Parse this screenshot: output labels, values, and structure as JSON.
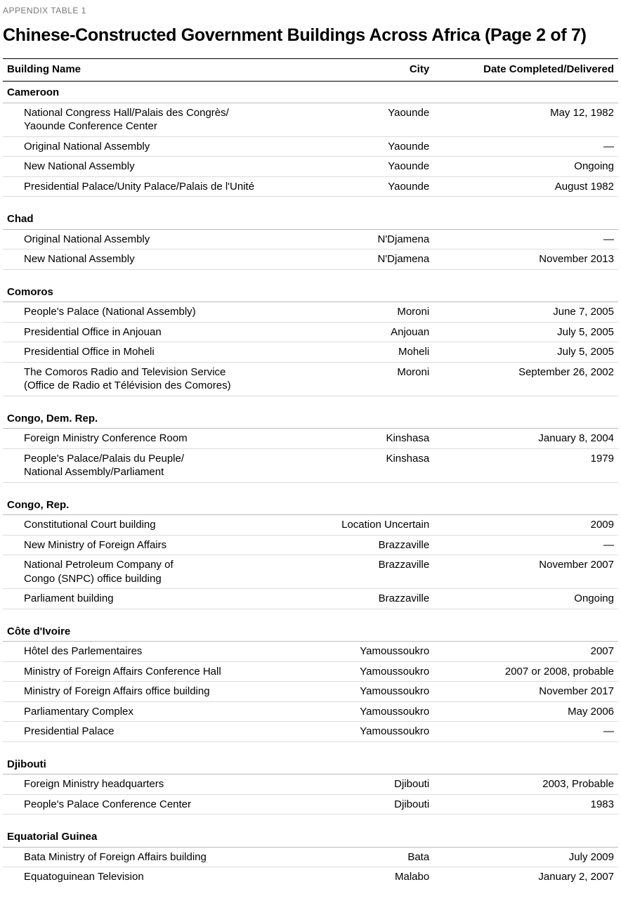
{
  "label": "APPENDIX TABLE 1",
  "title": "Chinese-Constructed Government Buildings Across Africa (Page 2 of 7)",
  "headers": {
    "name": "Building Name",
    "city": "City",
    "date": "Date Completed/Delivered"
  },
  "groups": [
    {
      "country": "Cameroon",
      "rows": [
        {
          "name": "National Congress Hall/Palais des Congrès/\nYaounde Conference Center",
          "city": "Yaounde",
          "date": "May 12, 1982"
        },
        {
          "name": "Original National Assembly",
          "city": "Yaounde",
          "date": "—"
        },
        {
          "name": "New National Assembly",
          "city": "Yaounde",
          "date": "Ongoing"
        },
        {
          "name": "Presidential Palace/Unity Palace/Palais de l'Unité",
          "city": "Yaounde",
          "date": "August 1982"
        }
      ]
    },
    {
      "country": "Chad",
      "rows": [
        {
          "name": "Original National Assembly",
          "city": "N'Djamena",
          "date": "—"
        },
        {
          "name": "New National Assembly",
          "city": "N'Djamena",
          "date": "November 2013"
        }
      ]
    },
    {
      "country": "Comoros",
      "rows": [
        {
          "name": "People's Palace (National Assembly)",
          "city": "Moroni",
          "date": "June 7, 2005"
        },
        {
          "name": "Presidential Office in Anjouan",
          "city": "Anjouan",
          "date": "July 5, 2005"
        },
        {
          "name": "Presidential Office in Moheli",
          "city": "Moheli",
          "date": "July 5, 2005"
        },
        {
          "name": "The Comoros Radio and Television Service\n(Office de Radio et Télévision des Comores)",
          "city": "Moroni",
          "date": "September 26, 2002"
        }
      ]
    },
    {
      "country": "Congo, Dem. Rep.",
      "rows": [
        {
          "name": "Foreign Ministry Conference Room",
          "city": "Kinshasa",
          "date": "January 8, 2004"
        },
        {
          "name": "People's Palace/Palais du Peuple/\nNational Assembly/Parliament",
          "city": "Kinshasa",
          "date": "1979"
        }
      ]
    },
    {
      "country": "Congo, Rep.",
      "rows": [
        {
          "name": "Constitutional Court building",
          "city": "Location Uncertain",
          "date": "2009"
        },
        {
          "name": "New Ministry of Foreign Affairs",
          "city": "Brazzaville",
          "date": "—"
        },
        {
          "name": "National Petroleum Company of\nCongo (SNPC) office building",
          "city": "Brazzaville",
          "date": "November 2007"
        },
        {
          "name": "Parliament building",
          "city": "Brazzaville",
          "date": "Ongoing"
        }
      ]
    },
    {
      "country": "Côte d'Ivoire",
      "rows": [
        {
          "name": "Hôtel des Parlementaires",
          "city": "Yamoussoukro",
          "date": "2007"
        },
        {
          "name": "Ministry of Foreign Affairs Conference Hall",
          "city": "Yamoussoukro",
          "date": "2007 or 2008, probable"
        },
        {
          "name": "Ministry of Foreign Affairs office building",
          "city": "Yamoussoukro",
          "date": "November 2017"
        },
        {
          "name": "Parliamentary Complex",
          "city": "Yamoussoukro",
          "date": "May 2006"
        },
        {
          "name": "Presidential Palace",
          "city": "Yamoussoukro",
          "date": "—"
        }
      ]
    },
    {
      "country": "Djibouti",
      "rows": [
        {
          "name": "Foreign Ministry headquarters",
          "city": "Djibouti",
          "date": "2003, Probable"
        },
        {
          "name": "People's Palace Conference Center",
          "city": "Djibouti",
          "date": "1983"
        }
      ]
    },
    {
      "country": "Equatorial Guinea",
      "rows": [
        {
          "name": "Bata Ministry of Foreign Affairs building",
          "city": "Bata",
          "date": "July 2009"
        },
        {
          "name": "Equatoguinean Television",
          "city": "Malabo",
          "date": "January 2, 2007"
        }
      ]
    }
  ]
}
